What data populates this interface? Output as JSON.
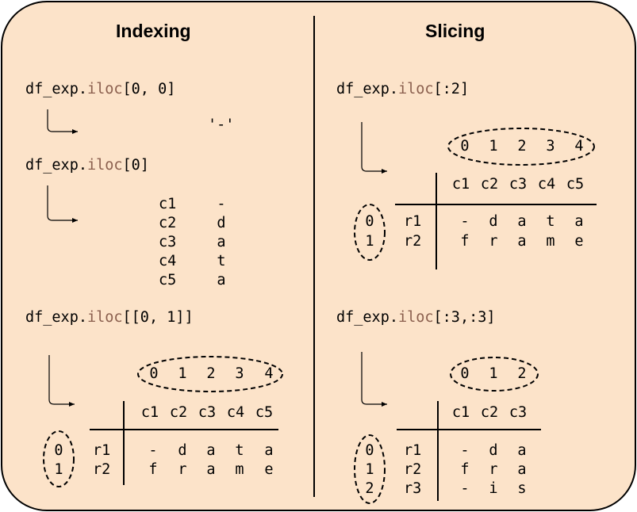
{
  "indexing": {
    "title": "Indexing",
    "ex1": {
      "obj": "df_exp.",
      "method": "iloc",
      "args": "[0, 0]",
      "result": "'-'"
    },
    "ex2": {
      "obj": "df_exp.",
      "method": "iloc",
      "args": "[0]",
      "rows": [
        {
          "label": "c1",
          "value": "-"
        },
        {
          "label": "c2",
          "value": "d"
        },
        {
          "label": "c3",
          "value": "a"
        },
        {
          "label": "c4",
          "value": "t"
        },
        {
          "label": "c5",
          "value": "a"
        }
      ]
    },
    "ex3": {
      "obj": "df_exp.",
      "method": "iloc",
      "args": "[[0, 1]]",
      "col_positions": [
        "0",
        "1",
        "2",
        "3",
        "4"
      ],
      "columns": [
        "c1",
        "c2",
        "c3",
        "c4",
        "c5"
      ],
      "row_positions": [
        "0",
        "1"
      ],
      "rows": [
        {
          "label": "r1",
          "cells": [
            "-",
            "d",
            "a",
            "t",
            "a"
          ]
        },
        {
          "label": "r2",
          "cells": [
            "f",
            "r",
            "a",
            "m",
            "e"
          ]
        }
      ]
    }
  },
  "slicing": {
    "title": "Slicing",
    "ex1": {
      "obj": "df_exp.",
      "method": "iloc",
      "args": "[:2]",
      "col_positions": [
        "0",
        "1",
        "2",
        "3",
        "4"
      ],
      "columns": [
        "c1",
        "c2",
        "c3",
        "c4",
        "c5"
      ],
      "row_positions": [
        "0",
        "1"
      ],
      "rows": [
        {
          "label": "r1",
          "cells": [
            "-",
            "d",
            "a",
            "t",
            "a"
          ]
        },
        {
          "label": "r2",
          "cells": [
            "f",
            "r",
            "a",
            "m",
            "e"
          ]
        }
      ]
    },
    "ex2": {
      "obj": "df_exp.",
      "method": "iloc",
      "args": "[:3,:3]",
      "col_positions": [
        "0",
        "1",
        "2"
      ],
      "columns": [
        "c1",
        "c2",
        "c3"
      ],
      "row_positions": [
        "0",
        "1",
        "2"
      ],
      "rows": [
        {
          "label": "r1",
          "cells": [
            "-",
            "d",
            "a"
          ]
        },
        {
          "label": "r2",
          "cells": [
            "f",
            "r",
            "a"
          ]
        },
        {
          "label": "r3",
          "cells": [
            "-",
            "i",
            "s"
          ]
        }
      ]
    }
  }
}
